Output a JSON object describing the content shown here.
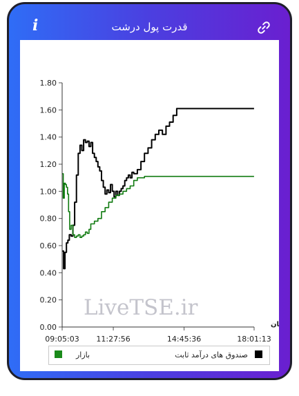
{
  "header": {
    "title": "قدرت پول درشت",
    "info_icon": "i",
    "link_icon_name": "link-icon"
  },
  "watermark": "LiveTSE.ir",
  "legend": {
    "market_label": "بازار",
    "fixed_income_label": "صندوق های درآمد ثابت"
  },
  "colors": {
    "market": "#0f7a0f",
    "fixed_income": "#000000",
    "legend_market": "#1a8a1a"
  },
  "chart_data": {
    "type": "line",
    "title": "قدرت پول درشت",
    "xlabel": "زمان",
    "ylabel": "",
    "ylim": [
      0,
      1.8
    ],
    "yticks": [
      "0.00",
      "0.20",
      "0.40",
      "0.60",
      "0.80",
      "1.00",
      "1.20",
      "1.40",
      "1.60",
      "1.80"
    ],
    "xticks": [
      {
        "label": "09:05:03",
        "x": 0
      },
      {
        "label": "11:27:56",
        "x": 142.9
      },
      {
        "label": "14:45:36",
        "x": 340.6
      },
      {
        "label": "18:01:13",
        "x": 536.2
      }
    ],
    "x_unit": "minutes since 09:05:03",
    "series": [
      {
        "name": "صندوق های درآمد ثابت",
        "color": "#000000",
        "x": [
          0,
          4,
          8,
          12,
          16,
          20,
          25,
          30,
          35,
          40,
          45,
          50,
          55,
          60,
          65,
          70,
          75,
          80,
          85,
          90,
          95,
          100,
          105,
          110,
          115,
          120,
          125,
          130,
          135,
          140,
          145,
          150,
          155,
          160,
          165,
          170,
          175,
          180,
          185,
          190,
          195,
          200,
          210,
          220,
          230,
          240,
          250,
          260,
          270,
          280,
          290,
          300,
          310,
          320,
          330,
          340,
          350,
          360,
          420,
          480,
          536
        ],
        "values": [
          0.56,
          0.43,
          0.55,
          0.62,
          0.64,
          0.68,
          0.67,
          0.75,
          0.92,
          1.12,
          1.28,
          1.34,
          1.3,
          1.38,
          1.36,
          1.37,
          1.33,
          1.36,
          1.28,
          1.25,
          1.22,
          1.18,
          1.15,
          1.08,
          1.03,
          0.98,
          1.01,
          0.99,
          1.05,
          1.0,
          0.96,
          1.0,
          0.97,
          1.0,
          1.02,
          1.04,
          1.08,
          1.1,
          1.12,
          1.1,
          1.14,
          1.13,
          1.16,
          1.22,
          1.28,
          1.32,
          1.38,
          1.42,
          1.45,
          1.42,
          1.48,
          1.51,
          1.56,
          1.61,
          1.61,
          1.61,
          1.61,
          1.61,
          1.61,
          1.61,
          1.61
        ]
      },
      {
        "name": "بازار",
        "color": "#0f7a0f",
        "x": [
          0,
          3,
          6,
          9,
          12,
          15,
          18,
          21,
          25,
          30,
          35,
          40,
          45,
          50,
          55,
          60,
          65,
          70,
          75,
          80,
          90,
          100,
          110,
          120,
          130,
          140,
          150,
          160,
          170,
          180,
          190,
          200,
          210,
          230,
          260,
          300,
          360,
          420,
          480,
          536
        ],
        "values": [
          1.13,
          0.95,
          1.06,
          1.05,
          1.03,
          0.98,
          0.85,
          0.72,
          0.75,
          0.68,
          0.66,
          0.67,
          0.68,
          0.66,
          0.67,
          0.68,
          0.7,
          0.69,
          0.72,
          0.76,
          0.78,
          0.8,
          0.85,
          0.88,
          0.92,
          0.95,
          0.97,
          0.98,
          1.0,
          1.02,
          1.04,
          1.08,
          1.1,
          1.11,
          1.11,
          1.11,
          1.11,
          1.11,
          1.11,
          1.11
        ]
      }
    ]
  }
}
